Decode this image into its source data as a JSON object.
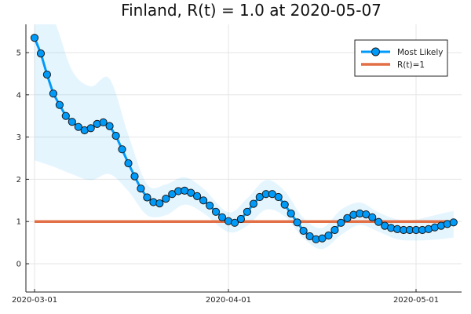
{
  "chart_data": {
    "type": "line",
    "title": "Finland, R(t) = 1.0 at 2020-05-07",
    "xlabel": "",
    "ylabel": "",
    "x_axis_type": "date",
    "xlim": [
      "2020-03-01",
      "2020-05-09"
    ],
    "ylim": [
      -0.6,
      5.7
    ],
    "x_ticks": [
      "2020-03-01",
      "2020-04-01",
      "2020-05-01"
    ],
    "y_ticks": [
      0,
      1,
      2,
      3,
      4,
      5
    ],
    "grid": true,
    "legend_position": "top-right",
    "series": [
      {
        "name": "Most Likely",
        "style": "line-with-markers",
        "color": "#009af9",
        "x": [
          "2020-03-01",
          "2020-03-02",
          "2020-03-03",
          "2020-03-04",
          "2020-03-05",
          "2020-03-06",
          "2020-03-07",
          "2020-03-08",
          "2020-03-09",
          "2020-03-10",
          "2020-03-11",
          "2020-03-12",
          "2020-03-13",
          "2020-03-14",
          "2020-03-15",
          "2020-03-16",
          "2020-03-17",
          "2020-03-18",
          "2020-03-19",
          "2020-03-20",
          "2020-03-21",
          "2020-03-22",
          "2020-03-23",
          "2020-03-24",
          "2020-03-25",
          "2020-03-26",
          "2020-03-27",
          "2020-03-28",
          "2020-03-29",
          "2020-03-30",
          "2020-03-31",
          "2020-04-01",
          "2020-04-02",
          "2020-04-03",
          "2020-04-04",
          "2020-04-05",
          "2020-04-06",
          "2020-04-07",
          "2020-04-08",
          "2020-04-09",
          "2020-04-10",
          "2020-04-11",
          "2020-04-12",
          "2020-04-13",
          "2020-04-14",
          "2020-04-15",
          "2020-04-16",
          "2020-04-17",
          "2020-04-18",
          "2020-04-19",
          "2020-04-20",
          "2020-04-21",
          "2020-04-22",
          "2020-04-23",
          "2020-04-24",
          "2020-04-25",
          "2020-04-26",
          "2020-04-27",
          "2020-04-28",
          "2020-04-29",
          "2020-04-30",
          "2020-05-01",
          "2020-05-02",
          "2020-05-03",
          "2020-05-04",
          "2020-05-05",
          "2020-05-06",
          "2020-05-07"
        ],
        "values": [
          5.35,
          4.98,
          4.48,
          4.03,
          3.76,
          3.5,
          3.36,
          3.24,
          3.16,
          3.21,
          3.31,
          3.35,
          3.26,
          3.03,
          2.71,
          2.38,
          2.07,
          1.78,
          1.57,
          1.46,
          1.43,
          1.54,
          1.65,
          1.72,
          1.73,
          1.68,
          1.6,
          1.5,
          1.38,
          1.23,
          1.1,
          1.01,
          0.97,
          1.06,
          1.23,
          1.42,
          1.58,
          1.65,
          1.65,
          1.58,
          1.4,
          1.19,
          0.98,
          0.78,
          0.65,
          0.58,
          0.6,
          0.67,
          0.8,
          0.97,
          1.08,
          1.16,
          1.19,
          1.17,
          1.1,
          0.99,
          0.9,
          0.85,
          0.82,
          0.8,
          0.8,
          0.8,
          0.8,
          0.82,
          0.86,
          0.9,
          0.94,
          0.98
        ]
      },
      {
        "name": "R(t)=1",
        "style": "line",
        "color": "#e26f46",
        "x": [
          "2020-03-01",
          "2020-05-07"
        ],
        "values": [
          1.0,
          1.0
        ]
      }
    ],
    "confidence_band": {
      "color": "#009af9",
      "x": [
        "2020-03-01",
        "2020-03-04",
        "2020-03-07",
        "2020-03-10",
        "2020-03-13",
        "2020-03-16",
        "2020-03-19",
        "2020-03-22",
        "2020-03-25",
        "2020-03-28",
        "2020-04-01",
        "2020-04-04",
        "2020-04-07",
        "2020-04-10",
        "2020-04-13",
        "2020-04-16",
        "2020-04-19",
        "2020-04-22",
        "2020-04-25",
        "2020-04-28",
        "2020-05-01",
        "2020-05-04",
        "2020-05-07"
      ],
      "lower": [
        2.45,
        2.3,
        2.12,
        1.98,
        2.12,
        1.72,
        1.15,
        1.15,
        1.4,
        1.2,
        0.75,
        0.9,
        1.28,
        1.12,
        0.6,
        0.35,
        0.68,
        0.92,
        0.76,
        0.58,
        0.55,
        0.57,
        0.62
      ],
      "upper": [
        6.2,
        5.8,
        4.58,
        4.2,
        4.38,
        3.05,
        1.88,
        1.88,
        2.05,
        1.78,
        1.22,
        1.55,
        1.98,
        1.72,
        1.08,
        0.85,
        1.28,
        1.45,
        1.22,
        1.05,
        1.05,
        1.15,
        1.25
      ]
    }
  }
}
